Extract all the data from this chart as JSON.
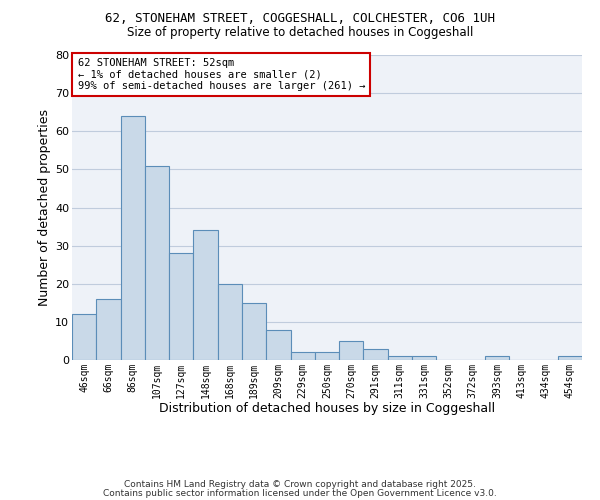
{
  "title1": "62, STONEHAM STREET, COGGESHALL, COLCHESTER, CO6 1UH",
  "title2": "Size of property relative to detached houses in Coggeshall",
  "xlabel": "Distribution of detached houses by size in Coggeshall",
  "ylabel": "Number of detached properties",
  "bar_values": [
    12,
    16,
    64,
    51,
    28,
    34,
    20,
    15,
    8,
    2,
    2,
    5,
    3,
    1,
    1,
    0,
    0,
    1,
    0,
    0,
    1
  ],
  "bin_labels": [
    "46sqm",
    "66sqm",
    "86sqm",
    "107sqm",
    "127sqm",
    "148sqm",
    "168sqm",
    "189sqm",
    "209sqm",
    "229sqm",
    "250sqm",
    "270sqm",
    "291sqm",
    "311sqm",
    "331sqm",
    "352sqm",
    "372sqm",
    "393sqm",
    "413sqm",
    "434sqm",
    "454sqm"
  ],
  "bar_color": "#c9d9e8",
  "bar_edge_color": "#5b8db8",
  "bg_color": "#eef2f8",
  "grid_color": "#c0ccdd",
  "annotation_text": "62 STONEHAM STREET: 52sqm\n← 1% of detached houses are smaller (2)\n99% of semi-detached houses are larger (261) →",
  "annotation_box_color": "#ffffff",
  "annotation_box_edge": "#cc0000",
  "footer1": "Contains HM Land Registry data © Crown copyright and database right 2025.",
  "footer2": "Contains public sector information licensed under the Open Government Licence v3.0.",
  "ylim": [
    0,
    80
  ],
  "yticks": [
    0,
    10,
    20,
    30,
    40,
    50,
    60,
    70,
    80
  ]
}
